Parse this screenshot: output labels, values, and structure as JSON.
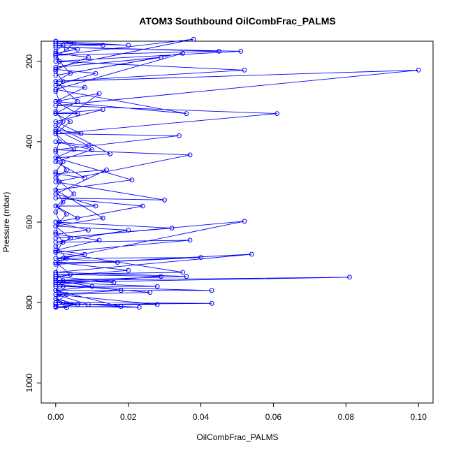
{
  "chart_data": {
    "type": "line",
    "title": "ATOM3 Southbound OilCombFrac_PALMS",
    "xlabel": "OilCombFrac_PALMS",
    "ylabel": "Pressure (mbar)",
    "xlim": [
      -0.004,
      0.104
    ],
    "ylim": [
      1050,
      150
    ],
    "y_reversed": true,
    "x_ticks": [
      0.0,
      0.02,
      0.04,
      0.06,
      0.08,
      0.1
    ],
    "x_tick_labels": [
      "0.00",
      "0.02",
      "0.04",
      "0.06",
      "0.08",
      "0.10"
    ],
    "y_ticks": [
      200,
      400,
      600,
      800,
      1000
    ],
    "y_tick_labels": [
      "200",
      "400",
      "600",
      "800",
      "1000"
    ],
    "grid": false,
    "colors": {
      "series": "#0000ff",
      "axis": "#000000",
      "background": "#ffffff"
    },
    "marker": "open-circle",
    "series": [
      {
        "points": [
          [
            0.0,
            810
          ],
          [
            0.002,
            800
          ],
          [
            0.0,
            790
          ],
          [
            0.006,
            805
          ],
          [
            0.0,
            800
          ],
          [
            0.009,
            805
          ],
          [
            0.0,
            780
          ],
          [
            0.018,
            770
          ],
          [
            0.0,
            770
          ],
          [
            0.043,
            770
          ],
          [
            0.0,
            760
          ],
          [
            0.028,
            760
          ],
          [
            0.0,
            750
          ],
          [
            0.081,
            737
          ],
          [
            0.0,
            745
          ],
          [
            0.036,
            735
          ],
          [
            0.0,
            725
          ],
          [
            0.054,
            680
          ],
          [
            0.0,
            705
          ],
          [
            0.04,
            688
          ],
          [
            0.002,
            690
          ],
          [
            0.052,
            598
          ],
          [
            0.0,
            640
          ],
          [
            0.032,
            615
          ],
          [
            0.0,
            600
          ],
          [
            0.024,
            560
          ],
          [
            0.0,
            540
          ],
          [
            0.03,
            545
          ],
          [
            0.0,
            500
          ],
          [
            0.037,
            433
          ],
          [
            0.0,
            420
          ],
          [
            0.034,
            385
          ],
          [
            0.0,
            380
          ],
          [
            0.061,
            330
          ],
          [
            0.0,
            310
          ],
          [
            0.1,
            222
          ],
          [
            0.0,
            250
          ],
          [
            0.052,
            222
          ],
          [
            0.0,
            200
          ],
          [
            0.051,
            175
          ],
          [
            0.0,
            165
          ],
          [
            0.045,
            175
          ],
          [
            0.0,
            185
          ],
          [
            0.038,
            145
          ],
          [
            0.0,
            215
          ],
          [
            0.029,
            190
          ],
          [
            0.0,
            235
          ],
          [
            0.035,
            180
          ],
          [
            0.0,
            270
          ],
          [
            0.036,
            330
          ],
          [
            0.0,
            300
          ],
          [
            0.012,
            280
          ],
          [
            0.0,
            360
          ],
          [
            0.015,
            430
          ],
          [
            0.0,
            440
          ],
          [
            0.021,
            495
          ],
          [
            0.0,
            520
          ],
          [
            0.013,
            590
          ],
          [
            0.0,
            610
          ],
          [
            0.02,
            620
          ],
          [
            0.0,
            650
          ],
          [
            0.037,
            645
          ],
          [
            0.0,
            675
          ],
          [
            0.035,
            725
          ],
          [
            0.0,
            730
          ],
          [
            0.029,
            735
          ],
          [
            0.0,
            755
          ],
          [
            0.026,
            775
          ],
          [
            0.0,
            780
          ],
          [
            0.028,
            805
          ],
          [
            0.0,
            805
          ],
          [
            0.043,
            802
          ],
          [
            0.0,
            800
          ],
          [
            0.023,
            812
          ],
          [
            0.0,
            810
          ],
          [
            0.018,
            810
          ],
          [
            0.0,
            770
          ],
          [
            0.01,
            760
          ],
          [
            0.0,
            745
          ],
          [
            0.016,
            750
          ],
          [
            0.0,
            735
          ],
          [
            0.02,
            720
          ],
          [
            0.0,
            700
          ],
          [
            0.017,
            700
          ],
          [
            0.0,
            690
          ],
          [
            0.008,
            680
          ],
          [
            0.0,
            670
          ],
          [
            0.012,
            645
          ],
          [
            0.0,
            630
          ],
          [
            0.009,
            620
          ],
          [
            0.0,
            600
          ],
          [
            0.006,
            590
          ],
          [
            0.0,
            560
          ],
          [
            0.011,
            560
          ],
          [
            0.0,
            530
          ],
          [
            0.014,
            470
          ],
          [
            0.0,
            480
          ],
          [
            0.008,
            490
          ],
          [
            0.0,
            450
          ],
          [
            0.01,
            420
          ],
          [
            0.0,
            400
          ],
          [
            0.009,
            410
          ],
          [
            0.0,
            370
          ],
          [
            0.007,
            380
          ],
          [
            0.0,
            350
          ],
          [
            0.013,
            320
          ],
          [
            0.0,
            330
          ],
          [
            0.006,
            330
          ],
          [
            0.0,
            300
          ],
          [
            0.008,
            265
          ],
          [
            0.0,
            260
          ],
          [
            0.011,
            230
          ],
          [
            0.0,
            220
          ],
          [
            0.009,
            190
          ],
          [
            0.0,
            180
          ],
          [
            0.006,
            170
          ],
          [
            0.0,
            160
          ],
          [
            0.013,
            160
          ],
          [
            0.0,
            155
          ],
          [
            0.02,
            160
          ],
          [
            0.0,
            150
          ],
          [
            0.005,
            155
          ],
          [
            0.003,
            170
          ],
          [
            0.0,
            190
          ],
          [
            0.004,
            230
          ],
          [
            0.0,
            250
          ],
          [
            0.006,
            300
          ],
          [
            0.0,
            330
          ],
          [
            0.004,
            350
          ],
          [
            0.0,
            380
          ],
          [
            0.005,
            420
          ],
          [
            0.0,
            440
          ],
          [
            0.003,
            470
          ],
          [
            0.0,
            490
          ],
          [
            0.005,
            530
          ],
          [
            0.0,
            560
          ],
          [
            0.003,
            580
          ],
          [
            0.0,
            610
          ],
          [
            0.004,
            640
          ],
          [
            0.0,
            660
          ],
          [
            0.003,
            690
          ],
          [
            0.0,
            700
          ],
          [
            0.004,
            730
          ],
          [
            0.0,
            740
          ],
          [
            0.002,
            760
          ],
          [
            0.0,
            770
          ],
          [
            0.003,
            780
          ],
          [
            0.0,
            800
          ],
          [
            0.006,
            805
          ],
          [
            0.0,
            812
          ],
          [
            0.003,
            813
          ],
          [
            0.0,
            790
          ],
          [
            0.001,
            780
          ],
          [
            0.0,
            770
          ],
          [
            0.002,
            745
          ],
          [
            0.0,
            725
          ],
          [
            0.001,
            700
          ],
          [
            0.0,
            675
          ],
          [
            0.002,
            650
          ],
          [
            0.0,
            625
          ],
          [
            0.001,
            600
          ],
          [
            0.0,
            575
          ],
          [
            0.002,
            550
          ],
          [
            0.0,
            520
          ],
          [
            0.001,
            500
          ],
          [
            0.0,
            475
          ],
          [
            0.002,
            450
          ],
          [
            0.0,
            425
          ],
          [
            0.001,
            400
          ],
          [
            0.0,
            375
          ],
          [
            0.002,
            350
          ],
          [
            0.0,
            325
          ],
          [
            0.001,
            300
          ],
          [
            0.0,
            275
          ],
          [
            0.002,
            250
          ],
          [
            0.0,
            225
          ],
          [
            0.001,
            200
          ],
          [
            0.0,
            175
          ],
          [
            0.002,
            160
          ],
          [
            0.0,
            150
          ]
        ]
      }
    ]
  }
}
